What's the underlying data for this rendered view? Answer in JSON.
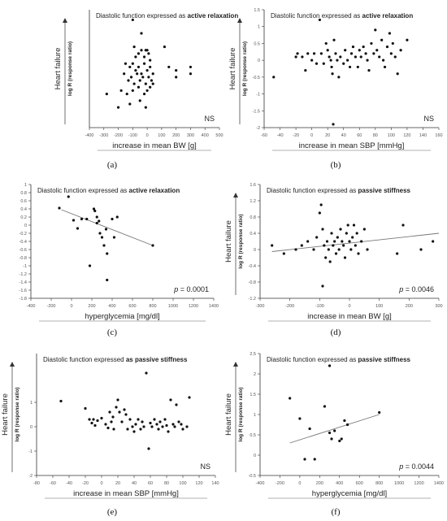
{
  "chart_data": [
    {
      "id": "a",
      "type": "scatter",
      "caption": "(a)",
      "title_plain": "Diastolic function expressed as ",
      "title_bold": "active relaxation",
      "xlabel": "increase in mean BW [g]",
      "ylabel": "log R (response ratio)",
      "arrow_label": "Heart failure",
      "annotation": "NS",
      "xlim": [
        -400,
        500
      ],
      "xticks": [
        -400,
        -300,
        -200,
        -100,
        0,
        100,
        200,
        300,
        400,
        500
      ],
      "ylim": [
        -1.5,
        2
      ],
      "yticks": [],
      "trendline": null,
      "points": [
        [
          -100,
          1.7
        ],
        [
          -90,
          0.9
        ],
        [
          -80,
          0.6
        ],
        [
          -60,
          0.7
        ],
        [
          -40,
          0.8
        ],
        [
          -20,
          0.6
        ],
        [
          -10,
          0.8
        ],
        [
          0,
          0.8
        ],
        [
          10,
          0.7
        ],
        [
          20,
          0.5
        ],
        [
          -150,
          0.4
        ],
        [
          -120,
          0.3
        ],
        [
          -100,
          0.4
        ],
        [
          -80,
          0.2
        ],
        [
          -60,
          0.3
        ],
        [
          -40,
          0.1
        ],
        [
          -20,
          0.4
        ],
        [
          0,
          0.2
        ],
        [
          20,
          0.3
        ],
        [
          40,
          0.1
        ],
        [
          -160,
          0.1
        ],
        [
          -130,
          -0.1
        ],
        [
          -110,
          0.0
        ],
        [
          -90,
          -0.2
        ],
        [
          -70,
          0.1
        ],
        [
          -50,
          -0.1
        ],
        [
          -30,
          0.0
        ],
        [
          -10,
          -0.2
        ],
        [
          10,
          0.0
        ],
        [
          30,
          -0.1
        ],
        [
          -180,
          -0.4
        ],
        [
          -140,
          -0.5
        ],
        [
          -100,
          -0.4
        ],
        [
          -60,
          -0.3
        ],
        [
          -20,
          -0.5
        ],
        [
          0,
          -0.4
        ],
        [
          20,
          -0.3
        ],
        [
          40,
          -0.2
        ],
        [
          -120,
          -0.8
        ],
        [
          -50,
          -0.7
        ],
        [
          -200,
          -0.9
        ],
        [
          -280,
          -0.5
        ],
        [
          -10,
          -0.9
        ],
        [
          120,
          0.9
        ],
        [
          150,
          0.3
        ],
        [
          200,
          0.2
        ],
        [
          200,
          0.0
        ],
        [
          300,
          0.3
        ],
        [
          300,
          0.1
        ],
        [
          -40,
          1.3
        ]
      ]
    },
    {
      "id": "b",
      "type": "scatter",
      "caption": "(b)",
      "title_plain": "Diastolic function expressed as ",
      "title_bold": "active relaxation",
      "xlabel": "increase in mean SBP [mmHg]",
      "ylabel": "log R (response ratio)",
      "arrow_label": "Heart failure",
      "annotation": "NS",
      "xlim": [
        -60,
        160
      ],
      "xticks": [
        -60,
        -40,
        -20,
        0,
        20,
        40,
        60,
        80,
        100,
        120,
        140,
        160
      ],
      "ylim": [
        -2,
        1.5
      ],
      "yticks": [
        -2,
        -1.5,
        -1,
        -0.5,
        0,
        0.5,
        1,
        1.5
      ],
      "trendline": null,
      "points": [
        [
          -48,
          -0.5
        ],
        [
          -20,
          0.1
        ],
        [
          -18,
          0.2
        ],
        [
          -12,
          0.1
        ],
        [
          -8,
          -0.3
        ],
        [
          -5,
          0.2
        ],
        [
          0,
          0.0
        ],
        [
          3,
          0.2
        ],
        [
          6,
          -0.1
        ],
        [
          10,
          1.2
        ],
        [
          12,
          0.2
        ],
        [
          15,
          -0.1
        ],
        [
          18,
          0.5
        ],
        [
          20,
          0.3
        ],
        [
          22,
          0.1
        ],
        [
          24,
          0.0
        ],
        [
          25,
          -0.2
        ],
        [
          26,
          -0.4
        ],
        [
          27,
          -1.9
        ],
        [
          28,
          0.6
        ],
        [
          30,
          0.2
        ],
        [
          32,
          0.0
        ],
        [
          34,
          -0.5
        ],
        [
          36,
          0.1
        ],
        [
          40,
          -0.1
        ],
        [
          42,
          0.3
        ],
        [
          45,
          0.0
        ],
        [
          48,
          -0.2
        ],
        [
          50,
          0.2
        ],
        [
          52,
          0.4
        ],
        [
          55,
          0.1
        ],
        [
          58,
          -0.2
        ],
        [
          60,
          0.3
        ],
        [
          62,
          0.1
        ],
        [
          65,
          0.4
        ],
        [
          68,
          0.2
        ],
        [
          70,
          0.0
        ],
        [
          72,
          -0.3
        ],
        [
          75,
          0.5
        ],
        [
          78,
          0.2
        ],
        [
          80,
          0.9
        ],
        [
          82,
          0.3
        ],
        [
          85,
          0.1
        ],
        [
          88,
          0.6
        ],
        [
          90,
          0.0
        ],
        [
          92,
          -0.2
        ],
        [
          95,
          0.4
        ],
        [
          98,
          0.8
        ],
        [
          100,
          0.2
        ],
        [
          102,
          0.5
        ],
        [
          105,
          0.1
        ],
        [
          108,
          -0.4
        ],
        [
          112,
          0.3
        ],
        [
          120,
          0.6
        ]
      ]
    },
    {
      "id": "c",
      "type": "scatter",
      "caption": "(c)",
      "title_plain": "Diastolic function expressed as ",
      "title_bold": "active relaxation",
      "xlabel": "hyperglycemia [mg/dl]",
      "ylabel": "",
      "arrow_label": "",
      "annotation": "p = 0.0001",
      "xlim": [
        -400,
        1400
      ],
      "xticks": [
        -400,
        -200,
        0,
        200,
        400,
        600,
        800,
        1000,
        1200,
        1400
      ],
      "ylim": [
        -1.8,
        1.0
      ],
      "yticks": [
        -1.8,
        -1.6,
        -1.4,
        -1.2,
        -1.0,
        -0.8,
        -0.6,
        -0.4,
        -0.2,
        0.0,
        0.2,
        0.4,
        0.6,
        0.8,
        1.0
      ],
      "trendline": [
        [
          -100,
          0.38
        ],
        [
          800,
          -0.5
        ]
      ],
      "points": [
        [
          -120,
          0.42
        ],
        [
          -30,
          0.7
        ],
        [
          20,
          0.12
        ],
        [
          60,
          -0.08
        ],
        [
          100,
          0.15
        ],
        [
          150,
          0.15
        ],
        [
          180,
          -1.0
        ],
        [
          220,
          0.4
        ],
        [
          230,
          0.35
        ],
        [
          250,
          0.2
        ],
        [
          250,
          0.05
        ],
        [
          270,
          0.1
        ],
        [
          280,
          -0.2
        ],
        [
          300,
          -0.3
        ],
        [
          320,
          -0.5
        ],
        [
          340,
          -0.1
        ],
        [
          350,
          -0.7
        ],
        [
          350,
          -1.35
        ],
        [
          400,
          0.15
        ],
        [
          420,
          -0.3
        ],
        [
          450,
          0.2
        ],
        [
          800,
          -0.5
        ]
      ]
    },
    {
      "id": "d",
      "type": "scatter",
      "caption": "(d)",
      "title_plain": "Diastolic function expressed as ",
      "title_bold": "passive stiffness",
      "xlabel": "increase in mean BW [g]",
      "ylabel": "log R (response ratio)",
      "arrow_label": "Heart failure",
      "annotation": "p = 0.0046",
      "xlim": [
        -300,
        300
      ],
      "xticks": [
        -300,
        -200,
        -100,
        0,
        100,
        200,
        300
      ],
      "ylim": [
        -1.2,
        1.6
      ],
      "yticks": [
        -1.2,
        -0.8,
        -0.4,
        0.0,
        0.4,
        0.8,
        1.2,
        1.6
      ],
      "trendline": [
        [
          -260,
          -0.05
        ],
        [
          300,
          0.4
        ]
      ],
      "points": [
        [
          -260,
          0.1
        ],
        [
          -220,
          -0.1
        ],
        [
          -180,
          0.0
        ],
        [
          -160,
          0.1
        ],
        [
          -140,
          0.2
        ],
        [
          -120,
          0.0
        ],
        [
          -110,
          0.3
        ],
        [
          -100,
          0.9
        ],
        [
          -95,
          1.1
        ],
        [
          -90,
          0.5
        ],
        [
          -85,
          0.1
        ],
        [
          -80,
          -0.2
        ],
        [
          -75,
          0.2
        ],
        [
          -70,
          0.0
        ],
        [
          -65,
          -0.3
        ],
        [
          -60,
          0.4
        ],
        [
          -55,
          0.1
        ],
        [
          -50,
          0.2
        ],
        [
          -45,
          -0.1
        ],
        [
          -40,
          0.3
        ],
        [
          -35,
          0.0
        ],
        [
          -30,
          0.5
        ],
        [
          -25,
          0.2
        ],
        [
          -20,
          0.1
        ],
        [
          -15,
          -0.2
        ],
        [
          -10,
          0.4
        ],
        [
          -5,
          0.6
        ],
        [
          0,
          0.2
        ],
        [
          5,
          0.0
        ],
        [
          10,
          0.3
        ],
        [
          15,
          0.6
        ],
        [
          20,
          0.1
        ],
        [
          25,
          0.4
        ],
        [
          30,
          -0.1
        ],
        [
          40,
          0.2
        ],
        [
          50,
          0.5
        ],
        [
          60,
          0.0
        ],
        [
          -90,
          -0.9
        ],
        [
          180,
          0.6
        ],
        [
          160,
          -0.1
        ],
        [
          240,
          0.0
        ],
        [
          280,
          0.2
        ]
      ]
    },
    {
      "id": "e",
      "type": "scatter",
      "caption": "(e)",
      "title_plain": "Diastolic function expressed ",
      "title_bold": "as passive stiffness",
      "xlabel": "increase in mean SBP [mmHg]",
      "ylabel": "log R (response ratio)",
      "arrow_label": "Heart failure",
      "annotation": "NS",
      "xlim": [
        -80,
        140
      ],
      "xticks": [
        -80,
        -60,
        -40,
        -20,
        0,
        20,
        40,
        60,
        80,
        100,
        120,
        140
      ],
      "ylim": [
        -2,
        3
      ],
      "yticks": [
        -2,
        -1,
        0,
        1
      ],
      "trendline": null,
      "points": [
        [
          -50,
          1.05
        ],
        [
          -20,
          0.75
        ],
        [
          -15,
          0.3
        ],
        [
          -12,
          0.15
        ],
        [
          -10,
          0.3
        ],
        [
          -8,
          0.05
        ],
        [
          -5,
          0.25
        ],
        [
          0,
          0.35
        ],
        [
          5,
          0.1
        ],
        [
          8,
          -0.05
        ],
        [
          10,
          0.6
        ],
        [
          12,
          0.2
        ],
        [
          14,
          0.4
        ],
        [
          15,
          -0.1
        ],
        [
          18,
          0.8
        ],
        [
          20,
          1.1
        ],
        [
          22,
          0.6
        ],
        [
          25,
          0.2
        ],
        [
          28,
          0.7
        ],
        [
          30,
          0.5
        ],
        [
          32,
          -0.1
        ],
        [
          35,
          0.3
        ],
        [
          38,
          0.0
        ],
        [
          40,
          -0.2
        ],
        [
          42,
          0.1
        ],
        [
          45,
          0.3
        ],
        [
          48,
          -0.1
        ],
        [
          50,
          0.2
        ],
        [
          52,
          0.0
        ],
        [
          55,
          2.2
        ],
        [
          58,
          -0.9
        ],
        [
          60,
          0.15
        ],
        [
          62,
          0.0
        ],
        [
          65,
          0.3
        ],
        [
          68,
          0.1
        ],
        [
          70,
          -0.1
        ],
        [
          72,
          0.2
        ],
        [
          75,
          0.0
        ],
        [
          78,
          0.3
        ],
        [
          80,
          0.05
        ],
        [
          82,
          -0.2
        ],
        [
          85,
          1.1
        ],
        [
          88,
          0.1
        ],
        [
          90,
          0.0
        ],
        [
          92,
          0.9
        ],
        [
          95,
          0.2
        ],
        [
          98,
          0.1
        ],
        [
          100,
          -0.1
        ],
        [
          105,
          0.0
        ],
        [
          108,
          1.2
        ]
      ]
    },
    {
      "id": "f",
      "type": "scatter",
      "caption": "(f)",
      "title_plain": "Diastolic function expressed as ",
      "title_bold": "passive stiffness",
      "xlabel": "hyperglycemia [mg/dl]",
      "ylabel": "log R (response ratio)",
      "arrow_label": "Heart failure",
      "annotation": "p = 0.0044",
      "xlim": [
        -400,
        1400
      ],
      "xticks": [
        -400,
        -200,
        0,
        200,
        400,
        600,
        800,
        1000,
        1200,
        1400
      ],
      "ylim": [
        -0.5,
        2.5
      ],
      "yticks": [
        -0.5,
        0,
        0.5,
        1,
        1.5,
        2,
        2.5
      ],
      "trendline": [
        [
          -100,
          0.3
        ],
        [
          800,
          1.0
        ]
      ],
      "points": [
        [
          -100,
          1.4
        ],
        [
          0,
          0.9
        ],
        [
          50,
          -0.1
        ],
        [
          100,
          0.65
        ],
        [
          150,
          -0.1
        ],
        [
          250,
          1.2
        ],
        [
          300,
          2.2
        ],
        [
          300,
          0.55
        ],
        [
          320,
          0.4
        ],
        [
          350,
          0.6
        ],
        [
          400,
          0.35
        ],
        [
          420,
          0.4
        ],
        [
          450,
          0.85
        ],
        [
          480,
          0.75
        ],
        [
          800,
          1.05
        ]
      ]
    }
  ]
}
